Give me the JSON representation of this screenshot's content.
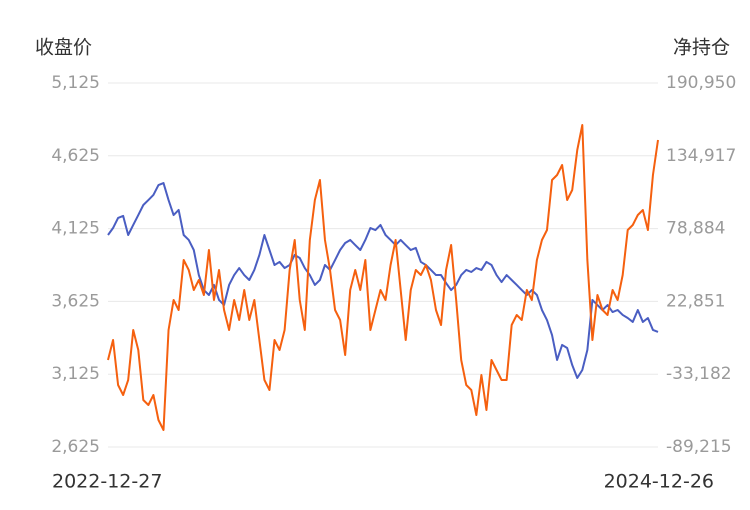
{
  "chart_data": {
    "type": "line",
    "ylabel": "收盘价",
    "y2label": "净持仓",
    "categories": [
      "2022-12-27",
      null,
      null,
      null,
      null,
      null,
      null,
      null,
      null,
      null,
      null,
      null,
      null,
      null,
      null,
      null,
      null,
      null,
      null,
      null,
      null,
      null,
      null,
      null,
      null,
      null,
      null,
      null,
      null,
      null,
      null,
      null,
      null,
      null,
      null,
      null,
      null,
      null,
      null,
      null,
      null,
      null,
      null,
      null,
      null,
      null,
      null,
      null,
      null,
      null,
      null,
      null,
      null,
      null,
      null,
      null,
      null,
      null,
      null,
      null,
      null,
      null,
      null,
      null,
      null,
      null,
      null,
      null,
      null,
      null,
      null,
      null,
      null,
      null,
      null,
      null,
      null,
      null,
      null,
      null,
      null,
      null,
      null,
      null,
      null,
      null,
      null,
      null,
      null,
      null,
      null,
      null,
      null,
      null,
      null,
      null,
      null,
      null,
      null,
      null,
      null,
      null,
      null,
      null,
      null,
      null,
      null,
      null,
      null,
      "2024-12-26"
    ],
    "series": [
      {
        "color": "#4a5ec2",
        "values": [
          4081,
          4129,
          4198,
          4212,
          4081,
          4150,
          4218,
          4287,
          4321,
          4356,
          4424,
          4438,
          4321,
          4218,
          4253,
          4081,
          4047,
          3978,
          3806,
          3703,
          3669,
          3738,
          3635,
          3600,
          3738,
          3806,
          3854,
          3806,
          3772,
          3841,
          3944,
          4081,
          3978,
          3875,
          3896,
          3854,
          3875,
          3944,
          3923,
          3854,
          3806,
          3738,
          3772,
          3875,
          3841,
          3909,
          3978,
          4026,
          4047,
          4012,
          3978,
          4047,
          4129,
          4115,
          4150,
          4081,
          4047,
          4012,
          4047,
          4012,
          3978,
          3992,
          3896,
          3875,
          3841,
          3806,
          3806,
          3751,
          3703,
          3738,
          3806,
          3841,
          3827,
          3854,
          3841,
          3896,
          3875,
          3806,
          3758,
          3806,
          3772,
          3738,
          3703,
          3669,
          3703,
          3669,
          3566,
          3497,
          3394,
          3223,
          3326,
          3305,
          3188,
          3099,
          3154,
          3291,
          3635,
          3600,
          3566,
          3600,
          3552,
          3566,
          3532,
          3511,
          3484,
          3566,
          3484,
          3511,
          3429,
          3415
        ]
      },
      {
        "color": "#f5600f",
        "axis": "y2",
        "values": [
          -22251,
          -6858,
          -41493,
          -49190,
          -37645,
          839,
          -14555,
          -53039,
          -56887,
          -49190,
          -68432,
          -76129,
          839,
          23929,
          16233,
          54717,
          47020,
          31626,
          39323,
          27778,
          62413,
          23929,
          47020,
          16233,
          839,
          23929,
          8536,
          31626,
          8536,
          23929,
          -6858,
          -37645,
          -45342,
          -6858,
          -14555,
          839,
          47020,
          70110,
          23929,
          839,
          70110,
          100897,
          116291,
          70110,
          47020,
          16233,
          8536,
          -18403,
          31626,
          47020,
          31626,
          54717,
          839,
          16233,
          31626,
          23929,
          50868,
          70110,
          31626,
          -6858,
          31626,
          47020,
          43171,
          50868,
          39323,
          16233,
          4687,
          47020,
          66262,
          23929,
          -22251,
          -41493,
          -45342,
          -64584,
          -33797,
          -60735,
          -22251,
          -29948,
          -37645,
          -37645,
          4687,
          12384,
          8536,
          31626,
          23929,
          54717,
          70110,
          77807,
          116291,
          120139,
          127836,
          100897,
          108594,
          139381,
          158623,
          54717,
          -6858,
          27778,
          16233,
          12384,
          31626,
          23929,
          43171,
          77807,
          81655,
          89352,
          93201,
          77807,
          120139,
          147078
        ]
      }
    ],
    "ylim": [
      2625,
      5125
    ],
    "yticks": [
      {
        "value": 2625,
        "label": "2,625"
      },
      {
        "value": 3125,
        "label": "3,125"
      },
      {
        "value": 3625,
        "label": "3,625"
      },
      {
        "value": 4125,
        "label": "4,125"
      },
      {
        "value": 4625,
        "label": "4,625"
      },
      {
        "value": 5125,
        "label": "5,125"
      }
    ],
    "y2lim": [
      -89215,
      190950
    ],
    "y2ticks": [
      {
        "value": -89215,
        "label": "-89,215"
      },
      {
        "value": -33182,
        "label": "-33,182"
      },
      {
        "value": 22851,
        "label": "22,851"
      },
      {
        "value": 78884,
        "label": "78,884"
      },
      {
        "value": 134917,
        "label": "134,917"
      },
      {
        "value": 190950,
        "label": "190,950"
      }
    ],
    "grid": true
  }
}
